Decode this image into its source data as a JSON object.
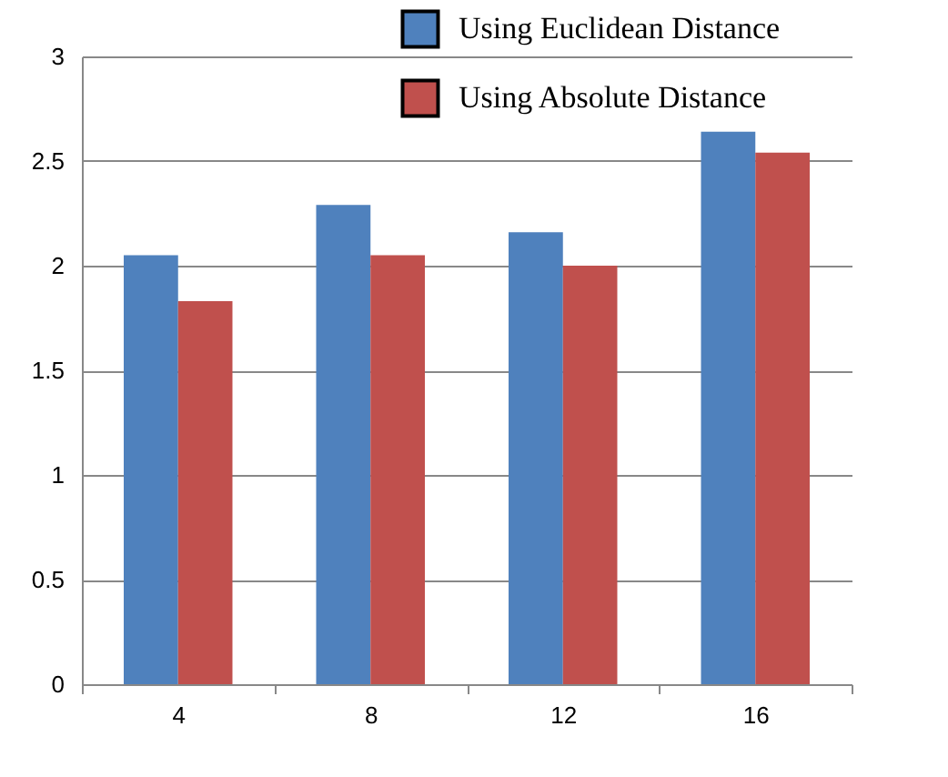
{
  "chart_data": {
    "type": "bar",
    "categories": [
      "4",
      "8",
      "12",
      "16"
    ],
    "series": [
      {
        "name": "Using Euclidean Distance",
        "color": "#4f81bd",
        "values": [
          2.05,
          2.29,
          2.16,
          2.64
        ]
      },
      {
        "name": "Using Absolute Distance",
        "color": "#c0504d",
        "values": [
          1.83,
          2.05,
          2.0,
          2.54
        ]
      }
    ],
    "ylim": [
      0,
      3
    ],
    "yticks": [
      0,
      0.5,
      1,
      1.5,
      2,
      2.5,
      3
    ],
    "grid": "y",
    "legend": "top right"
  }
}
